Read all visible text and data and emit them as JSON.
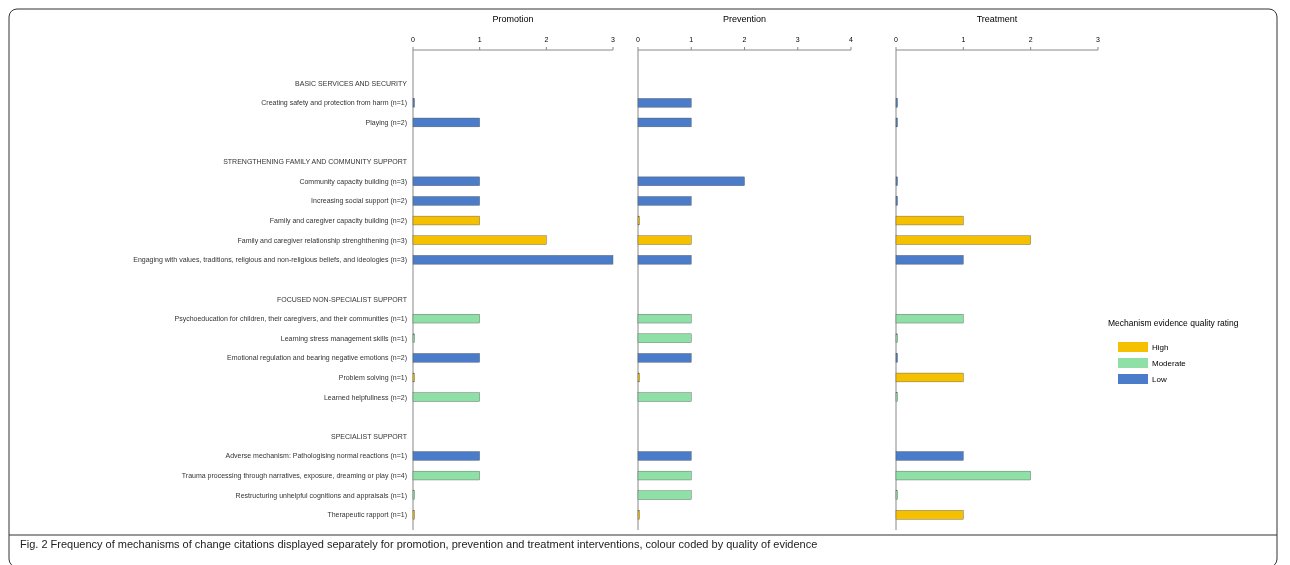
{
  "chart_data": [
    {
      "type": "bar",
      "orientation": "horizontal",
      "stacked": true,
      "title": "Promotion",
      "categories": [
        "BASIC SERVICES AND SECURITY",
        "Creating safety and protection from harm (n=1)",
        "Playing (n=2)",
        null,
        "STRENGTHENING FAMILY AND COMMUNITY SUPPORT",
        "Community capacity building (n=3)",
        "Increasing social support (n=2)",
        "Family and caregiver capacity building (n=2)",
        "Family and caregiver relationship strenghthening  (n=3)",
        "Engaging with values, traditions, religious and non-religious beliefs, and ideologies  (n=3)",
        null,
        "FOCUSED NON-SPECIALIST SUPPORT",
        "Psychoeducation for children, their caregivers, and their communities  (n=1)",
        "Learning stress management skills  (n=1)",
        "Emotional regulation and bearing negative emotions  (n=2)",
        "Problem solving (n=1)",
        "Learned helpfullness  (n=2)",
        null,
        "SPECIALIST SUPPORT",
        "Adverse mechanism: Pathologising normal reactions (n=1)",
        "Trauma processing through narratives, exposure, dreaming or play  (n=4)",
        "Restructuring unhelpful cognitions and appraisals  (n=1)",
        "Therapeutic rapport  (n=1)"
      ],
      "xlim": [
        0,
        3
      ],
      "xticks": [
        0,
        1,
        2,
        3
      ],
      "grid": false,
      "legend": false,
      "series": [
        {
          "color": "#f5c000",
          "values": [
            null,
            null,
            null,
            null,
            null,
            null,
            null,
            1,
            2,
            null,
            null,
            null,
            null,
            null,
            null,
            0,
            null,
            null,
            null,
            null,
            null,
            null,
            0
          ]
        },
        {
          "color": "#8fe0a6",
          "values": [
            null,
            null,
            null,
            null,
            null,
            null,
            null,
            null,
            null,
            null,
            null,
            null,
            1,
            0,
            null,
            null,
            1,
            null,
            null,
            null,
            1,
            0,
            null
          ]
        },
        {
          "color": "#4a7cc9",
          "values": [
            null,
            0,
            1,
            null,
            null,
            1,
            1,
            null,
            null,
            3,
            null,
            null,
            null,
            null,
            1,
            null,
            null,
            null,
            null,
            1,
            null,
            null,
            null
          ]
        }
      ],
      "annotations": [
        "Fig. 2 Frequency of mechanisms of change citations displayed separately for promotion, prevention and treatment interventions, colour coded by quality of evidence"
      ]
    },
    {
      "type": "bar",
      "orientation": "horizontal",
      "stacked": true,
      "title": "Prevention",
      "categories": [
        null,
        null,
        null,
        null,
        null,
        null,
        null,
        null,
        null,
        null,
        null,
        null,
        null,
        null,
        null,
        null,
        null,
        null,
        null,
        null,
        null,
        null,
        null
      ],
      "xlim": [
        0,
        4
      ],
      "xticks": [
        0,
        1,
        2,
        3,
        4
      ],
      "grid": false,
      "legend": false,
      "series": [
        {
          "color": "#f5c000",
          "values": [
            null,
            null,
            null,
            null,
            null,
            null,
            null,
            0,
            1,
            null,
            null,
            null,
            null,
            null,
            null,
            0,
            null,
            null,
            null,
            null,
            null,
            null,
            0
          ]
        },
        {
          "color": "#8fe0a6",
          "values": [
            null,
            null,
            null,
            null,
            null,
            null,
            null,
            null,
            null,
            null,
            null,
            null,
            1,
            1,
            null,
            null,
            1,
            null,
            null,
            null,
            1,
            1,
            null
          ]
        },
        {
          "color": "#4a7cc9",
          "values": [
            null,
            1,
            1,
            null,
            null,
            2,
            1,
            null,
            null,
            1,
            null,
            null,
            null,
            null,
            1,
            null,
            null,
            null,
            null,
            1,
            null,
            null,
            null
          ]
        }
      ]
    },
    {
      "type": "bar",
      "orientation": "horizontal",
      "stacked": true,
      "title": "Treatment",
      "categories": [
        null,
        null,
        null,
        null,
        null,
        null,
        null,
        null,
        null,
        null,
        null,
        null,
        null,
        null,
        null,
        null,
        null,
        null,
        null,
        null,
        null,
        null,
        null
      ],
      "xlim": [
        0,
        3
      ],
      "xticks": [
        0,
        1,
        2,
        3
      ],
      "grid": false,
      "legend": "right",
      "legend_title": "Mechanism evidence quality rating",
      "series": [
        {
          "name": "High",
          "color": "#f5c000",
          "values": [
            null,
            null,
            null,
            null,
            null,
            null,
            null,
            1,
            2,
            null,
            null,
            null,
            null,
            null,
            null,
            1,
            null,
            null,
            null,
            null,
            null,
            null,
            1
          ]
        },
        {
          "name": "Moderate",
          "color": "#8fe0a6",
          "values": [
            null,
            null,
            null,
            null,
            null,
            null,
            null,
            null,
            null,
            null,
            null,
            null,
            1,
            0,
            null,
            null,
            0,
            null,
            null,
            null,
            2,
            0,
            null
          ]
        },
        {
          "name": "Low",
          "color": "#4a7cc9",
          "values": [
            null,
            0,
            0,
            null,
            null,
            0,
            0,
            null,
            null,
            1,
            null,
            null,
            null,
            null,
            0,
            null,
            null,
            null,
            null,
            1,
            null,
            null,
            null
          ]
        }
      ]
    }
  ]
}
